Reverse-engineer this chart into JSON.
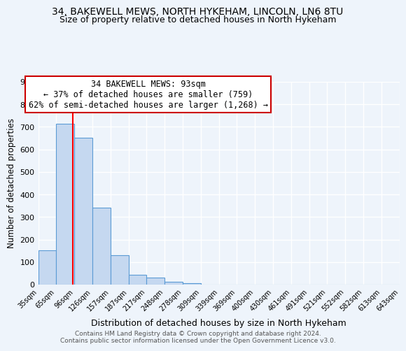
{
  "title1": "34, BAKEWELL MEWS, NORTH HYKEHAM, LINCOLN, LN6 8TU",
  "title2": "Size of property relative to detached houses in North Hykeham",
  "bar_values": [
    152,
    715,
    652,
    340,
    130,
    42,
    30,
    12,
    5,
    0,
    0,
    0,
    0,
    0,
    0,
    0,
    0,
    0,
    0,
    0
  ],
  "bin_edges": [
    35,
    65,
    96,
    126,
    157,
    187,
    217,
    248,
    278,
    309,
    339,
    369,
    400,
    430,
    461,
    491,
    521,
    552,
    582,
    613,
    643
  ],
  "bin_labels": [
    "35sqm",
    "65sqm",
    "96sqm",
    "126sqm",
    "157sqm",
    "187sqm",
    "217sqm",
    "248sqm",
    "278sqm",
    "309sqm",
    "339sqm",
    "369sqm",
    "400sqm",
    "430sqm",
    "461sqm",
    "491sqm",
    "521sqm",
    "552sqm",
    "582sqm",
    "613sqm",
    "643sqm"
  ],
  "ylabel": "Number of detached properties",
  "xlabel": "Distribution of detached houses by size in North Hykeham",
  "ylim": [
    0,
    900
  ],
  "yticks": [
    0,
    100,
    200,
    300,
    400,
    500,
    600,
    700,
    800,
    900
  ],
  "bar_color": "#c5d8f0",
  "bar_edgecolor": "#5b9bd5",
  "property_line_x": 93,
  "annotation_title": "34 BAKEWELL MEWS: 93sqm",
  "annotation_line1": "← 37% of detached houses are smaller (759)",
  "annotation_line2": "62% of semi-detached houses are larger (1,268) →",
  "annotation_box_color": "#ffffff",
  "annotation_box_edgecolor": "#cc0000",
  "footer_line1": "Contains HM Land Registry data © Crown copyright and database right 2024.",
  "footer_line2": "Contains public sector information licensed under the Open Government Licence v3.0.",
  "background_color": "#eef4fb",
  "plot_bg_color": "#eef4fb",
  "grid_color": "#ffffff",
  "title_fontsize": 10,
  "subtitle_fontsize": 9
}
